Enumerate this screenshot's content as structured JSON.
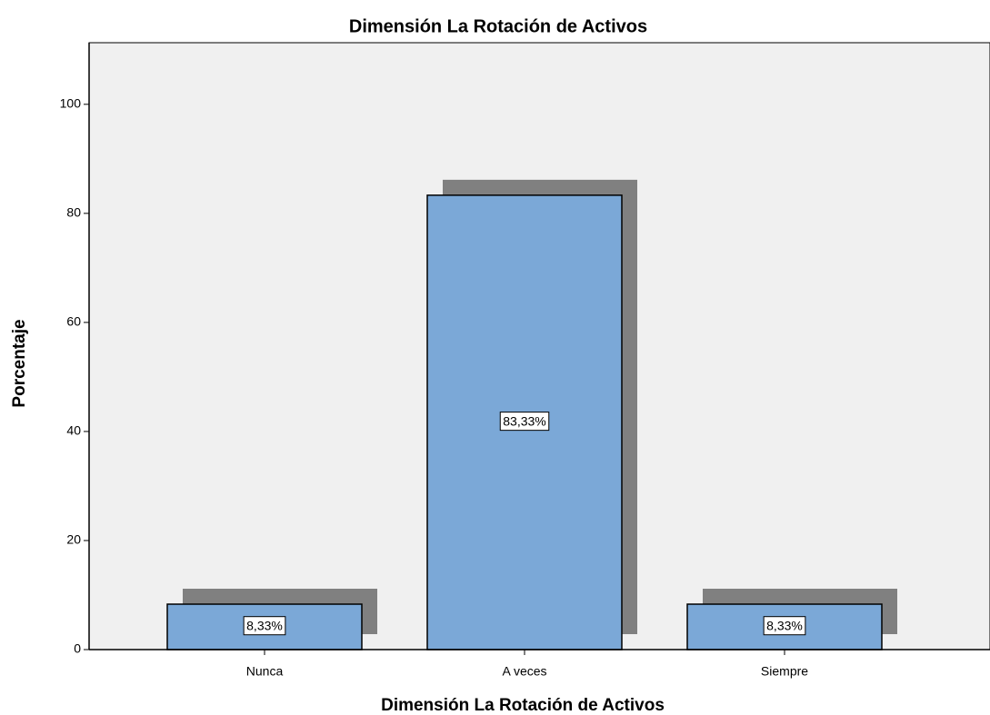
{
  "chart_data": {
    "type": "bar",
    "title": "Dimensión La Rotación de Activos",
    "x_label": "Dimensión La Rotación de Activos",
    "y_label": "Porcentaje",
    "categories": [
      "Nunca",
      "A veces",
      "Siempre"
    ],
    "values": [
      8.33,
      83.33,
      8.33
    ],
    "value_labels": [
      "8,33%",
      "83,33%",
      "8,33%"
    ],
    "color": "#7ba8d7",
    "shadow_color": "#808080",
    "ylim": [
      0,
      111.3
    ],
    "yticks": [
      0,
      20,
      40,
      60,
      80,
      100
    ]
  }
}
